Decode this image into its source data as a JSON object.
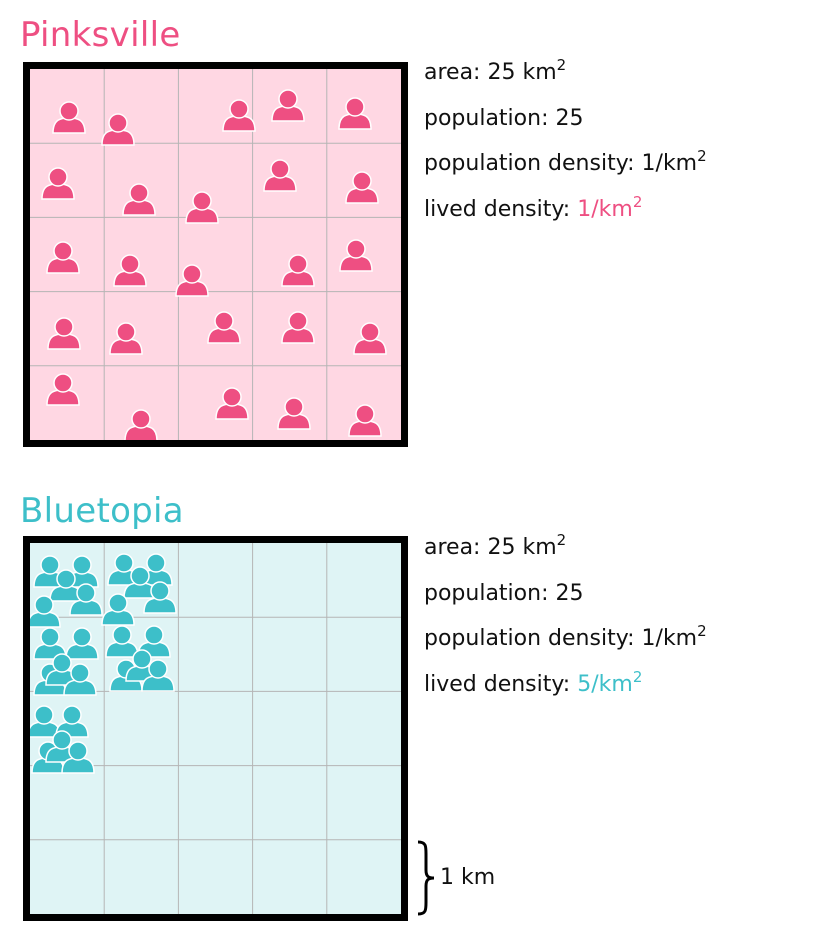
{
  "colors": {
    "pink": "#ee4f82",
    "pink_bg": "#ffd7e3",
    "blue": "#3dbfc9",
    "blue_bg": "#dff4f5",
    "grid_line": "#b5b5b5",
    "border": "#000000"
  },
  "icon": "person-icon",
  "grid": {
    "rows": 5,
    "cols": 5,
    "cell_km": 1
  },
  "cities": [
    {
      "name": "Pinksville",
      "area": "area: 25 km",
      "area_sup": "2",
      "population": "population: 25",
      "density": "population density: 1/km",
      "density_sup": "2",
      "lived_label": "lived density: ",
      "lived_value": "1/km",
      "lived_sup": "2",
      "people_per_occupied_cell": [
        1,
        1,
        1,
        1,
        1,
        1,
        1,
        1,
        1,
        1,
        1,
        1,
        1,
        1,
        1,
        1,
        1,
        1,
        1,
        1,
        1,
        1,
        1,
        1,
        1
      ]
    },
    {
      "name": "Bluetopia",
      "area": "area: 25 km",
      "area_sup": "2",
      "population": "population: 25",
      "density": "population density: 1/km",
      "density_sup": "2",
      "lived_label": "lived density: ",
      "lived_value": "5/km",
      "lived_sup": "2",
      "people_per_occupied_cell": [
        5,
        5,
        5,
        5,
        5
      ]
    }
  ],
  "scale": {
    "label": "1 km"
  }
}
